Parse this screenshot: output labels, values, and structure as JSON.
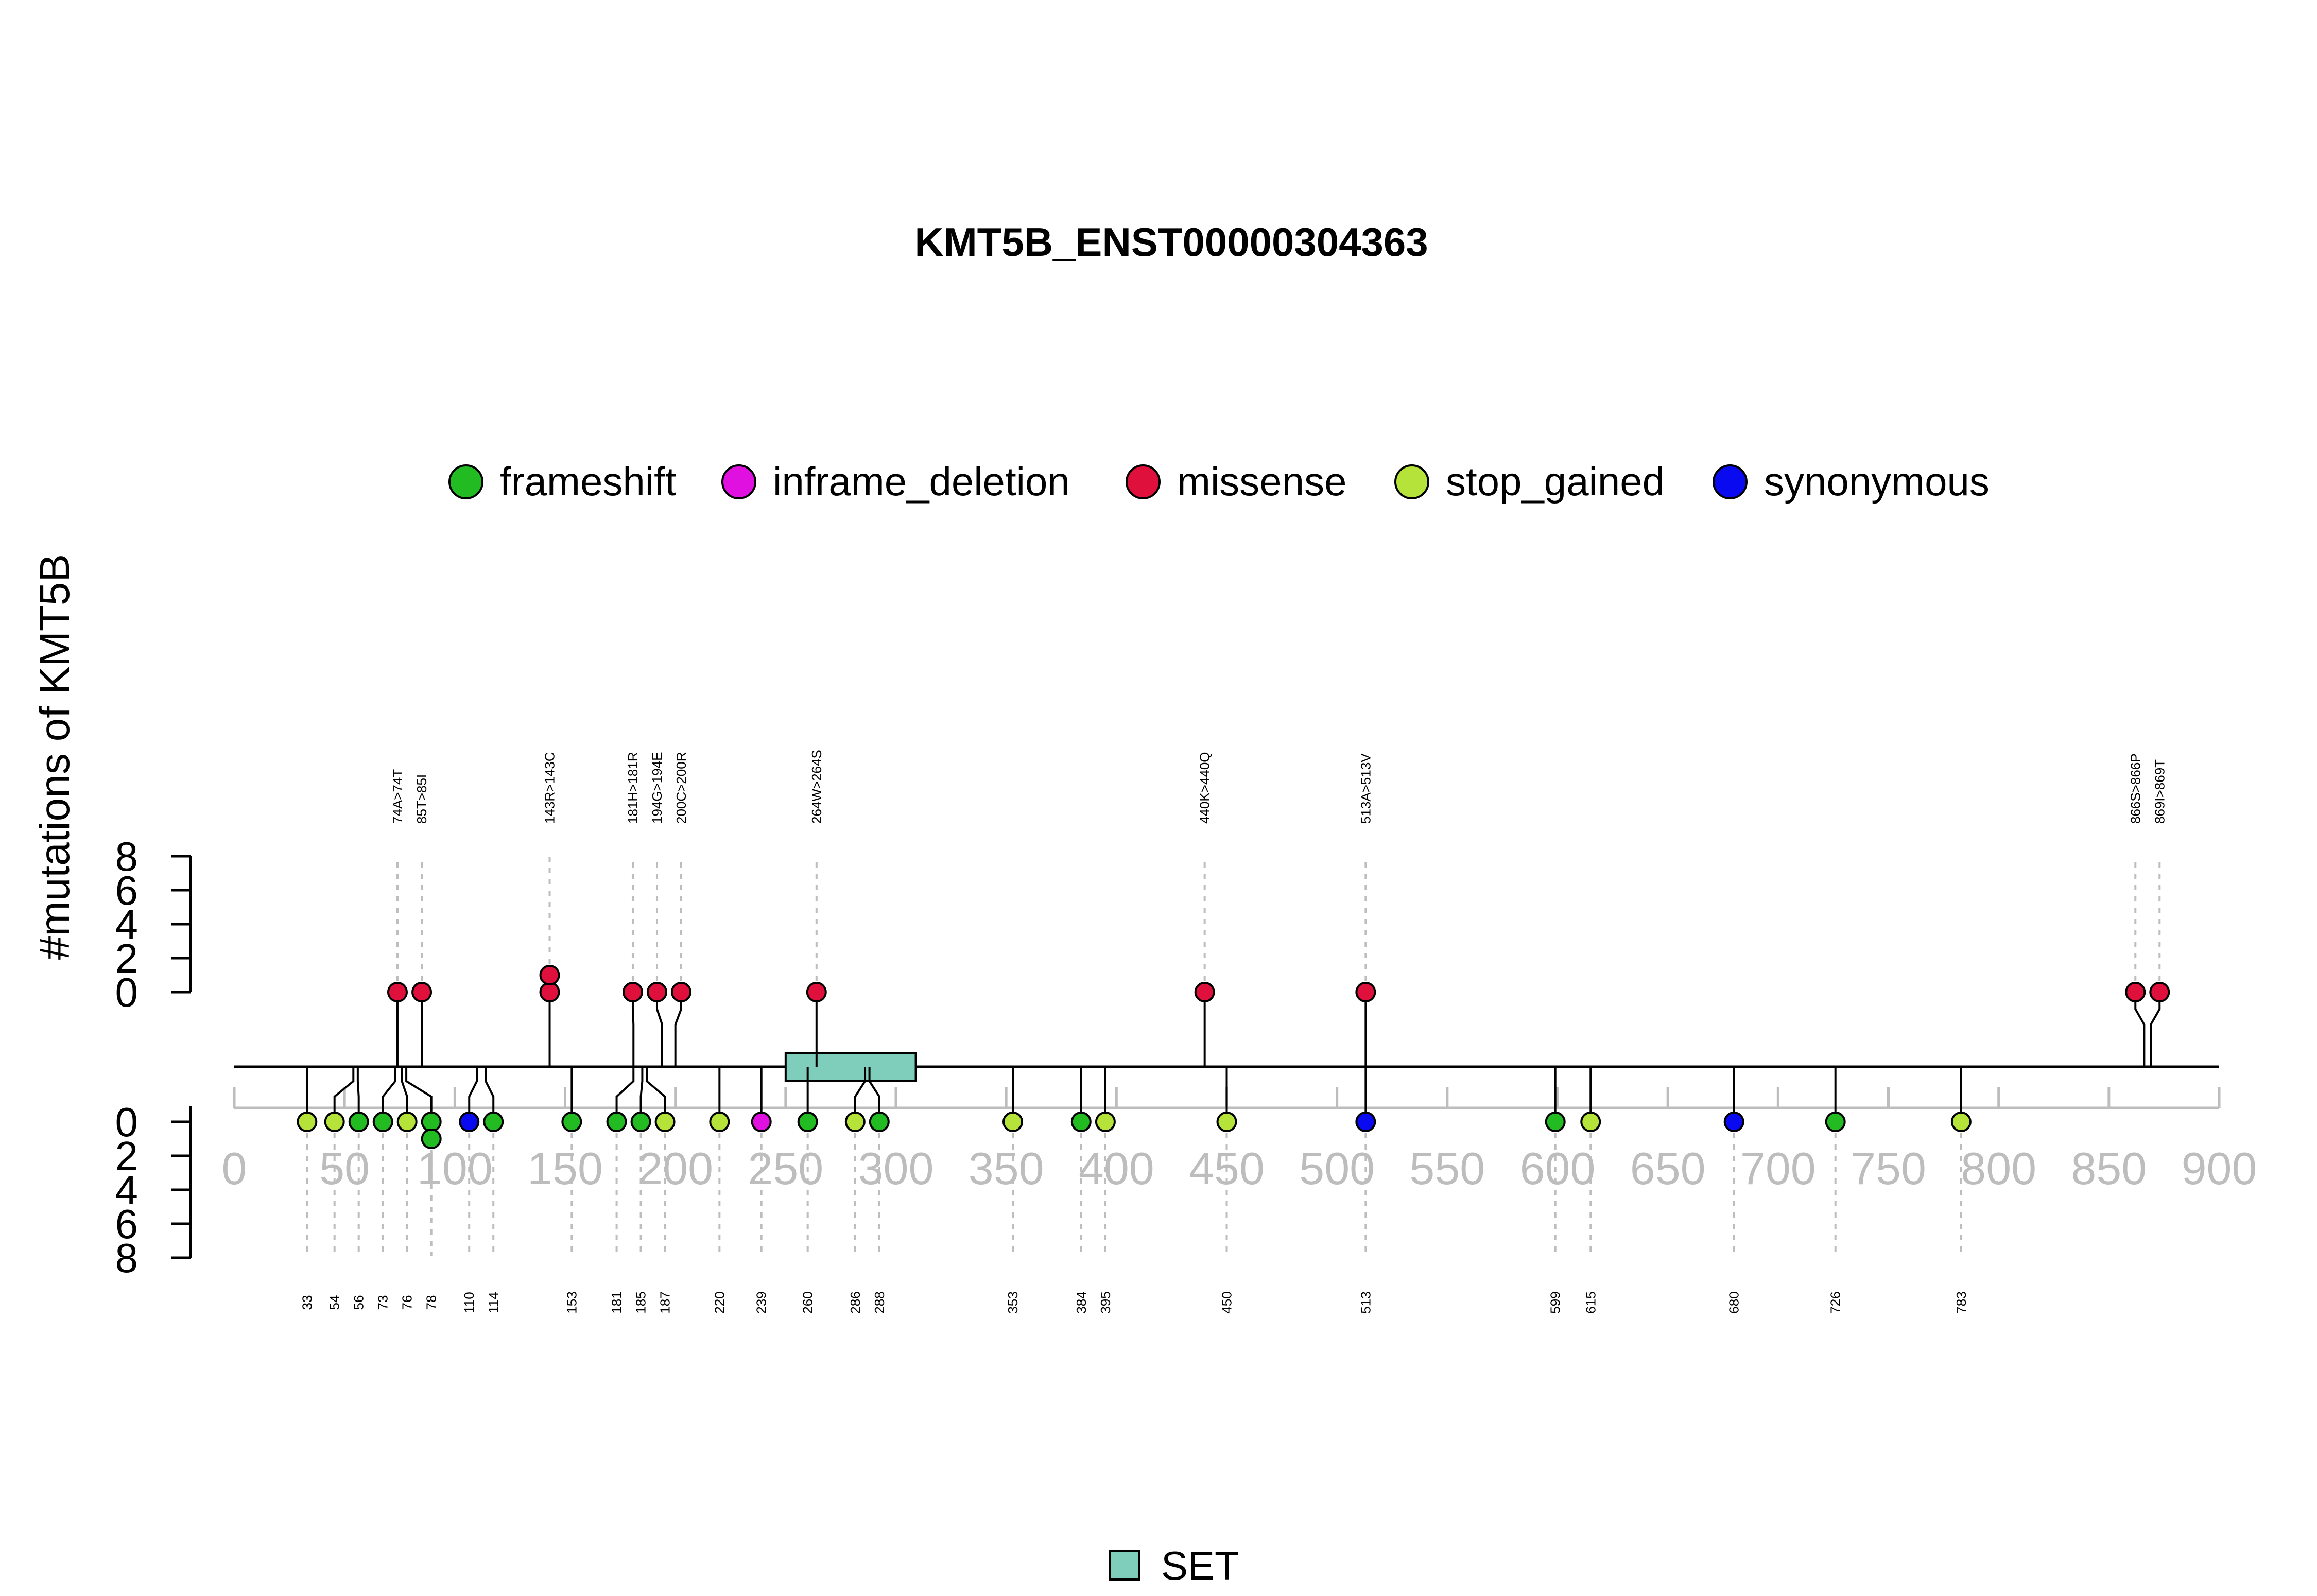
{
  "chart_data": {
    "type": "lollipop",
    "title": "KMT5B_ENST00000304363",
    "ylabel": "#mutations of KMT5B",
    "xlim": [
      0,
      900
    ],
    "x_ticks": [
      0,
      50,
      100,
      150,
      200,
      250,
      300,
      350,
      400,
      450,
      500,
      550,
      600,
      650,
      700,
      750,
      800,
      850,
      900
    ],
    "y_ticks": [
      0,
      2,
      4,
      6,
      8
    ],
    "colors": {
      "frameshift": "#22bb22",
      "inframe_deletion": "#e011e0",
      "missense": "#e0103c",
      "stop_gained": "#b5e33a",
      "synonymous": "#0a0af0",
      "domain": "#7fcdbb"
    },
    "legend": [
      "frameshift",
      "inframe_deletion",
      "missense",
      "stop_gained",
      "synonymous"
    ],
    "domains": [
      {
        "name": "SET",
        "start": 250,
        "end": 309
      }
    ],
    "domain_legend": "SET",
    "upper": [
      {
        "pos": 74,
        "label": "74A>74T",
        "count": 1,
        "type": "missense"
      },
      {
        "pos": 85,
        "label": "85T>85I",
        "count": 1,
        "type": "missense"
      },
      {
        "pos": 143,
        "label": "143R>143C",
        "count": 2,
        "type": "missense"
      },
      {
        "pos": 181,
        "label": "181H>181R",
        "count": 1,
        "type": "missense"
      },
      {
        "pos": 194,
        "label": "194G>194E",
        "count": 1,
        "type": "missense"
      },
      {
        "pos": 200,
        "label": "200C>200R",
        "count": 1,
        "type": "missense"
      },
      {
        "pos": 264,
        "label": "264W>264S",
        "count": 1,
        "type": "missense"
      },
      {
        "pos": 440,
        "label": "440K>440Q",
        "count": 1,
        "type": "missense"
      },
      {
        "pos": 513,
        "label": "513A>513V",
        "count": 1,
        "type": "missense"
      },
      {
        "pos": 866,
        "label": "866S>866P",
        "count": 1,
        "type": "missense"
      },
      {
        "pos": 869,
        "label": "869I>869T",
        "count": 1,
        "type": "missense"
      }
    ],
    "lower": [
      {
        "pos": 33,
        "label": "33",
        "count": 1,
        "type": "stop_gained"
      },
      {
        "pos": 54,
        "label": "54",
        "count": 1,
        "type": "stop_gained"
      },
      {
        "pos": 56,
        "label": "56",
        "count": 1,
        "type": "frameshift"
      },
      {
        "pos": 73,
        "label": "73",
        "count": 1,
        "type": "frameshift"
      },
      {
        "pos": 76,
        "label": "76",
        "count": 1,
        "type": "stop_gained"
      },
      {
        "pos": 78,
        "label": "78",
        "count": 2,
        "type": "frameshift"
      },
      {
        "pos": 110,
        "label": "110",
        "count": 1,
        "type": "synonymous"
      },
      {
        "pos": 114,
        "label": "114",
        "count": 1,
        "type": "frameshift"
      },
      {
        "pos": 153,
        "label": "153",
        "count": 1,
        "type": "frameshift"
      },
      {
        "pos": 181,
        "label": "181",
        "count": 1,
        "type": "frameshift"
      },
      {
        "pos": 185,
        "label": "185",
        "count": 1,
        "type": "frameshift"
      },
      {
        "pos": 187,
        "label": "187",
        "count": 1,
        "type": "stop_gained"
      },
      {
        "pos": 220,
        "label": "220",
        "count": 1,
        "type": "stop_gained"
      },
      {
        "pos": 239,
        "label": "239",
        "count": 1,
        "type": "inframe_deletion"
      },
      {
        "pos": 260,
        "label": "260",
        "count": 1,
        "type": "frameshift"
      },
      {
        "pos": 286,
        "label": "286",
        "count": 1,
        "type": "stop_gained"
      },
      {
        "pos": 288,
        "label": "288",
        "count": 1,
        "type": "frameshift"
      },
      {
        "pos": 353,
        "label": "353",
        "count": 1,
        "type": "stop_gained"
      },
      {
        "pos": 384,
        "label": "384",
        "count": 1,
        "type": "frameshift"
      },
      {
        "pos": 395,
        "label": "395",
        "count": 1,
        "type": "stop_gained"
      },
      {
        "pos": 450,
        "label": "450",
        "count": 1,
        "type": "stop_gained"
      },
      {
        "pos": 513,
        "label": "513",
        "count": 1,
        "type": "synonymous"
      },
      {
        "pos": 599,
        "label": "599",
        "count": 1,
        "type": "frameshift"
      },
      {
        "pos": 615,
        "label": "615",
        "count": 1,
        "type": "stop_gained"
      },
      {
        "pos": 680,
        "label": "680",
        "count": 1,
        "type": "synonymous"
      },
      {
        "pos": 726,
        "label": "726",
        "count": 1,
        "type": "frameshift"
      },
      {
        "pos": 783,
        "label": "783",
        "count": 1,
        "type": "stop_gained"
      }
    ]
  }
}
